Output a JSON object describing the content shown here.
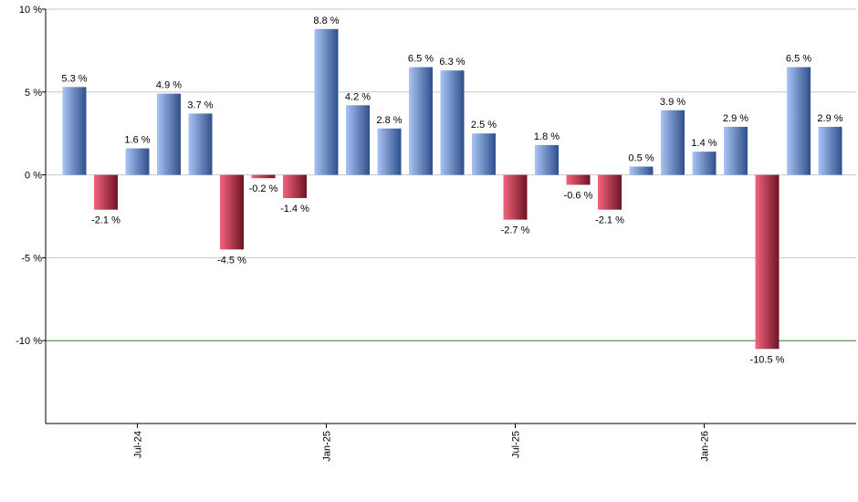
{
  "chart_data": {
    "type": "bar",
    "y_unit": " %",
    "ylim": [
      -15,
      10
    ],
    "yticks": [
      10,
      5,
      0,
      -5,
      -10
    ],
    "ytick_labels": [
      "10 %",
      "5 %",
      "0 %",
      "-5 %",
      "-10 %"
    ],
    "reference_line": -10,
    "grid": true,
    "legend": "none",
    "values": [
      5.3,
      -2.1,
      1.6,
      4.9,
      3.7,
      -4.5,
      -0.2,
      -1.4,
      8.8,
      4.2,
      2.8,
      6.5,
      6.3,
      2.5,
      -2.7,
      1.8,
      -0.6,
      -2.1,
      0.5,
      3.9,
      1.4,
      2.9,
      -10.5,
      6.5,
      2.9
    ],
    "value_labels": [
      "5.3 %",
      "-2.1 %",
      "1.6 %",
      "4.9 %",
      "3.7 %",
      "-4.5 %",
      "-0.2 %",
      "-1.4 %",
      "8.8 %",
      "4.2 %",
      "2.8 %",
      "6.5 %",
      "6.3 %",
      "2.5 %",
      "-2.7 %",
      "1.8 %",
      "-0.6 %",
      "-2.1 %",
      "0.5 %",
      "3.9 %",
      "1.4 %",
      "2.9 %",
      "-10.5 %",
      "6.5 %",
      "2.9 %"
    ],
    "x_ticks": [
      {
        "label": "Jul-24",
        "index": 2
      },
      {
        "label": "Jan-25",
        "index": 8
      },
      {
        "label": "Jul-25",
        "index": 14
      },
      {
        "label": "Jan-26",
        "index": 20
      }
    ],
    "colors": {
      "positive_light": "#a9c4f5",
      "positive_dark": "#2f4f8c",
      "negative_light": "#f3647e",
      "negative_dark": "#6e1424",
      "reference_line": "#2f7a2f",
      "grid": "#c8c8c8",
      "axis": "#000000"
    }
  }
}
